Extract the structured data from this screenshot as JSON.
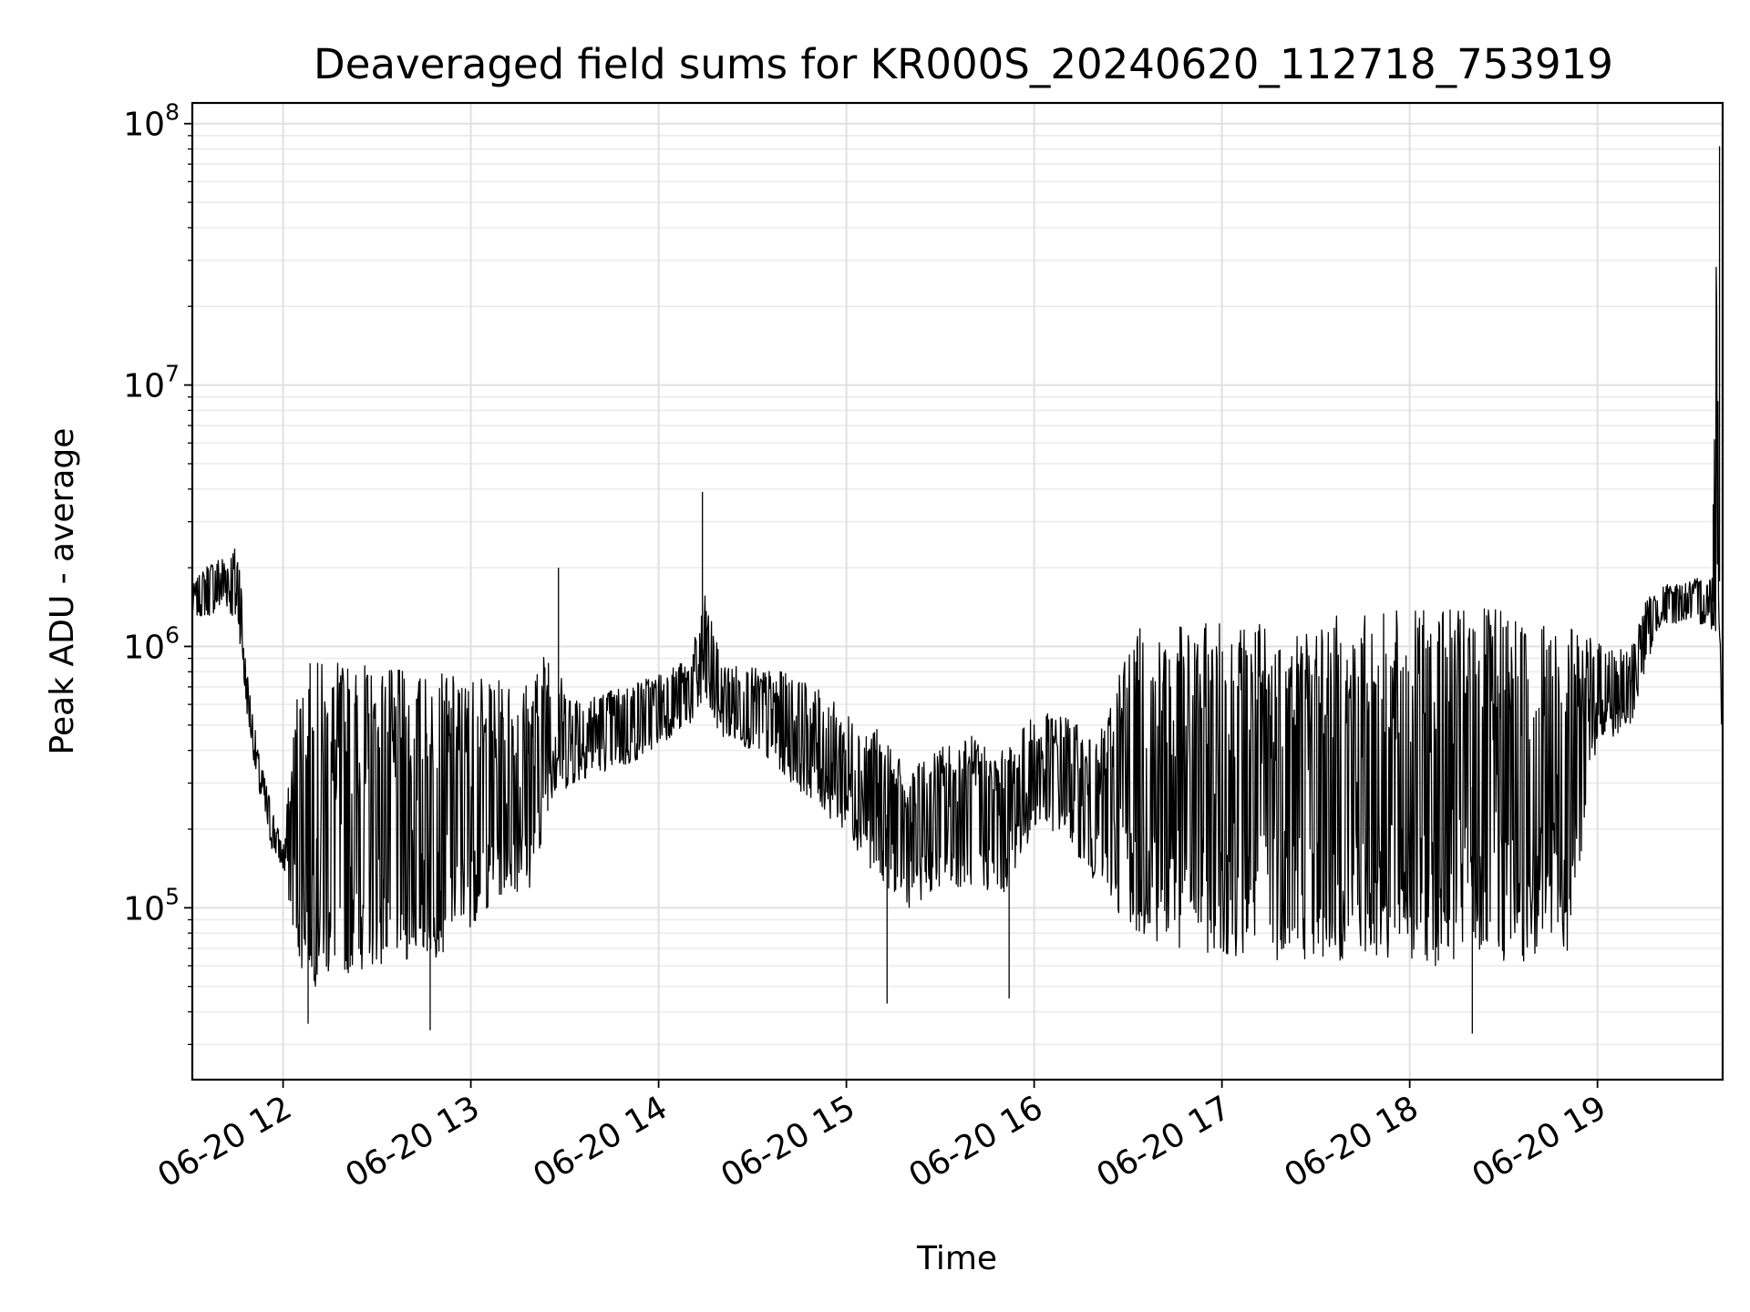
{
  "chart_data": {
    "type": "line",
    "title": "Deaveraged field sums for KR000S_20240620_112718_753919",
    "xlabel": "Time",
    "ylabel": "Peak ADU - average",
    "yscale": "log",
    "xlim": [
      "2024-06-20T11:31",
      "2024-06-20T19:40"
    ],
    "ylim": [
      22000,
      120000000
    ],
    "grid": {
      "major": true,
      "minor": true
    },
    "line_color": "#000000",
    "x_ticks": [
      {
        "value": "2024-06-20T12:00",
        "label": "06-20 12"
      },
      {
        "value": "2024-06-20T13:00",
        "label": "06-20 13"
      },
      {
        "value": "2024-06-20T14:00",
        "label": "06-20 14"
      },
      {
        "value": "2024-06-20T15:00",
        "label": "06-20 15"
      },
      {
        "value": "2024-06-20T16:00",
        "label": "06-20 16"
      },
      {
        "value": "2024-06-20T17:00",
        "label": "06-20 17"
      },
      {
        "value": "2024-06-20T18:00",
        "label": "06-20 18"
      },
      {
        "value": "2024-06-20T19:00",
        "label": "06-20 19"
      }
    ],
    "y_ticks": [
      {
        "value": 100000,
        "base": "10",
        "exp": "5"
      },
      {
        "value": 1000000,
        "base": "10",
        "exp": "6"
      },
      {
        "value": 10000000,
        "base": "10",
        "exp": "7"
      },
      {
        "value": 100000000,
        "base": "10",
        "exp": "8"
      }
    ],
    "series": [
      {
        "x": [
          "2024-06-20T11:31",
          "2024-06-20T11:36",
          "2024-06-20T11:42",
          "2024-06-20T11:46",
          "2024-06-20T11:48",
          "2024-06-20T11:52",
          "2024-06-20T11:56",
          "2024-06-20T12:00",
          "2024-06-20T12:05",
          "2024-06-20T12:10",
          "2024-06-20T12:20",
          "2024-06-20T12:30",
          "2024-06-20T12:40",
          "2024-06-20T12:50",
          "2024-06-20T13:00",
          "2024-06-20T13:10",
          "2024-06-20T13:20",
          "2024-06-20T13:25",
          "2024-06-20T13:30",
          "2024-06-20T13:40",
          "2024-06-20T13:50",
          "2024-06-20T14:00",
          "2024-06-20T14:10",
          "2024-06-20T14:15",
          "2024-06-20T14:20",
          "2024-06-20T14:30",
          "2024-06-20T14:40",
          "2024-06-20T14:50",
          "2024-06-20T15:00",
          "2024-06-20T15:10",
          "2024-06-20T15:20",
          "2024-06-20T15:30",
          "2024-06-20T15:40",
          "2024-06-20T15:50",
          "2024-06-20T16:00",
          "2024-06-20T16:10",
          "2024-06-20T16:20",
          "2024-06-20T16:30",
          "2024-06-20T16:40",
          "2024-06-20T16:50",
          "2024-06-20T17:00",
          "2024-06-20T17:10",
          "2024-06-20T17:20",
          "2024-06-20T17:30",
          "2024-06-20T17:40",
          "2024-06-20T17:50",
          "2024-06-20T18:00",
          "2024-06-20T18:10",
          "2024-06-20T18:20",
          "2024-06-20T18:30",
          "2024-06-20T18:40",
          "2024-06-20T18:50",
          "2024-06-20T19:00",
          "2024-06-20T19:10",
          "2024-06-20T19:15",
          "2024-06-20T19:20",
          "2024-06-20T19:30",
          "2024-06-20T19:37",
          "2024-06-20T19:38",
          "2024-06-20T19:39",
          "2024-06-20T19:40"
        ],
        "upper": [
          1700000,
          2100000,
          2300000,
          2500000,
          900000,
          400000,
          260000,
          170000,
          850000,
          880000,
          880000,
          850000,
          800000,
          790000,
          780000,
          740000,
          760000,
          1100000,
          700000,
          660000,
          720000,
          800000,
          900000,
          1600000,
          870000,
          830000,
          800000,
          700000,
          560000,
          480000,
          330000,
          420000,
          460000,
          400000,
          550000,
          560000,
          420000,
          1150000,
          1200000,
          1200000,
          1250000,
          1270000,
          1280000,
          1300000,
          1330000,
          1350000,
          1380000,
          1400000,
          1400000,
          1380000,
          1350000,
          1200000,
          1050000,
          950000,
          1500000,
          1700000,
          1800000,
          1900000,
          80000000,
          3000000,
          400000
        ],
        "lower": [
          1300000,
          1300000,
          1400000,
          1100000,
          600000,
          280000,
          170000,
          140000,
          60000,
          50000,
          55000,
          60000,
          60000,
          65000,
          85000,
          110000,
          120000,
          250000,
          280000,
          330000,
          340000,
          420000,
          500000,
          550000,
          450000,
          400000,
          320000,
          250000,
          190000,
          130000,
          100000,
          120000,
          120000,
          110000,
          200000,
          190000,
          120000,
          85000,
          70000,
          68000,
          66000,
          64000,
          63000,
          62000,
          62000,
          61000,
          60000,
          60000,
          60000,
          60000,
          62000,
          64000,
          440000,
          450000,
          800000,
          1200000,
          1250000,
          1150000,
          1100000,
          1050000,
          320000
        ]
      }
    ],
    "spikes": [
      {
        "x": "2024-06-20T14:14",
        "y": 3900000
      },
      {
        "x": "2024-06-20T13:28",
        "y": 2000000
      },
      {
        "x": "2024-06-20T19:37",
        "y": 3500000
      },
      {
        "x": "2024-06-20T19:39",
        "y": 82000000
      },
      {
        "x": "2024-06-20T12:08",
        "y": 36000
      },
      {
        "x": "2024-06-20T12:47",
        "y": 34000
      },
      {
        "x": "2024-06-20T18:20",
        "y": 33000
      },
      {
        "x": "2024-06-20T15:13",
        "y": 43000
      },
      {
        "x": "2024-06-20T15:52",
        "y": 45000
      }
    ]
  }
}
